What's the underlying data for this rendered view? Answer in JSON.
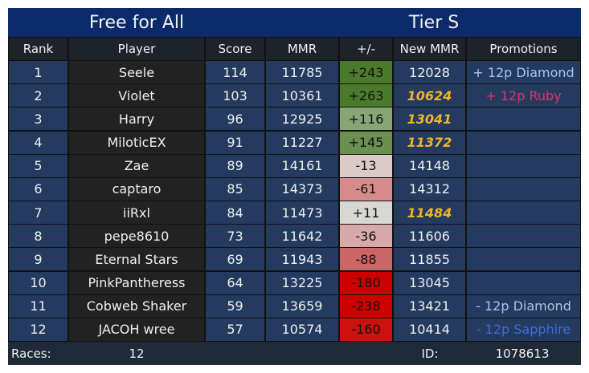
{
  "header": {
    "title": "Free for All",
    "tier": "Tier S"
  },
  "table": {
    "columns": [
      "Rank",
      "Player",
      "Score",
      "MMR",
      "+/-",
      "New MMR",
      "Promotions"
    ],
    "rows": [
      {
        "rank": 1,
        "player": "Seele",
        "score": 114,
        "mmr": 11785,
        "delta": "+243",
        "delta_color": "#4b7a2d",
        "new_mmr": 12028,
        "promotion": "+ 12p Diamond",
        "promotion_color": "#a9c4e4"
      },
      {
        "rank": 2,
        "player": "Violet",
        "score": 103,
        "mmr": 10361,
        "delta": "+263",
        "delta_color": "#4a7a2b",
        "new_mmr": 10624,
        "new_mmr_color": "#f0b429",
        "promotion": "+ 12p Ruby",
        "promotion_color": "#e0336b"
      },
      {
        "rank": 3,
        "player": "Harry",
        "score": 96,
        "mmr": 12925,
        "delta": "+116",
        "delta_color": "#87a676",
        "new_mmr": 13041,
        "new_mmr_color": "#f0b429"
      },
      {
        "rank": 4,
        "player": "MiloticEX",
        "score": 91,
        "mmr": 11227,
        "delta": "+145",
        "delta_color": "#6a8f4f",
        "new_mmr": 11372,
        "new_mmr_color": "#f0b429"
      },
      {
        "rank": 5,
        "player": "Zae",
        "score": 89,
        "mmr": 14161,
        "delta": "-13",
        "delta_color": "#dcc9c9",
        "new_mmr": 14148
      },
      {
        "rank": 6,
        "player": "captaro",
        "score": 85,
        "mmr": 14373,
        "delta": "-61",
        "delta_color": "#d78b8b",
        "new_mmr": 14312
      },
      {
        "rank": 7,
        "player": "iiRxl",
        "score": 84,
        "mmr": 11473,
        "delta": "+11",
        "delta_color": "#d7d8d3",
        "new_mmr": 11484,
        "new_mmr_color": "#f0b429"
      },
      {
        "rank": 8,
        "player": "pepe8610",
        "score": 73,
        "mmr": 11642,
        "delta": "-36",
        "delta_color": "#d9a9a9",
        "new_mmr": 11606
      },
      {
        "rank": 9,
        "player": "Eternal Stars",
        "score": 69,
        "mmr": 11943,
        "delta": "-88",
        "delta_color": "#cc6666",
        "new_mmr": 11855
      },
      {
        "rank": 10,
        "player": "PinkPantheress",
        "score": 64,
        "mmr": 13225,
        "delta": "-180",
        "delta_color": "#cc0000",
        "new_mmr": 13045
      },
      {
        "rank": 11,
        "player": "Cobweb Shaker",
        "score": 59,
        "mmr": 13659,
        "delta": "-238",
        "delta_color": "#cc0000",
        "new_mmr": 13421,
        "promotion": "- 12p Diamond",
        "promotion_color": "#a9c4e4"
      },
      {
        "rank": 12,
        "player": "JACOH wree",
        "score": 57,
        "mmr": 10574,
        "delta": "-160",
        "delta_color": "#cc1111",
        "new_mmr": 10414,
        "promotion": "- 12p Sapphire",
        "promotion_color": "#3a6fd6"
      }
    ]
  },
  "footer": {
    "races_label": "Races:",
    "races": 12,
    "id_label": "ID:",
    "id": 1078613
  }
}
